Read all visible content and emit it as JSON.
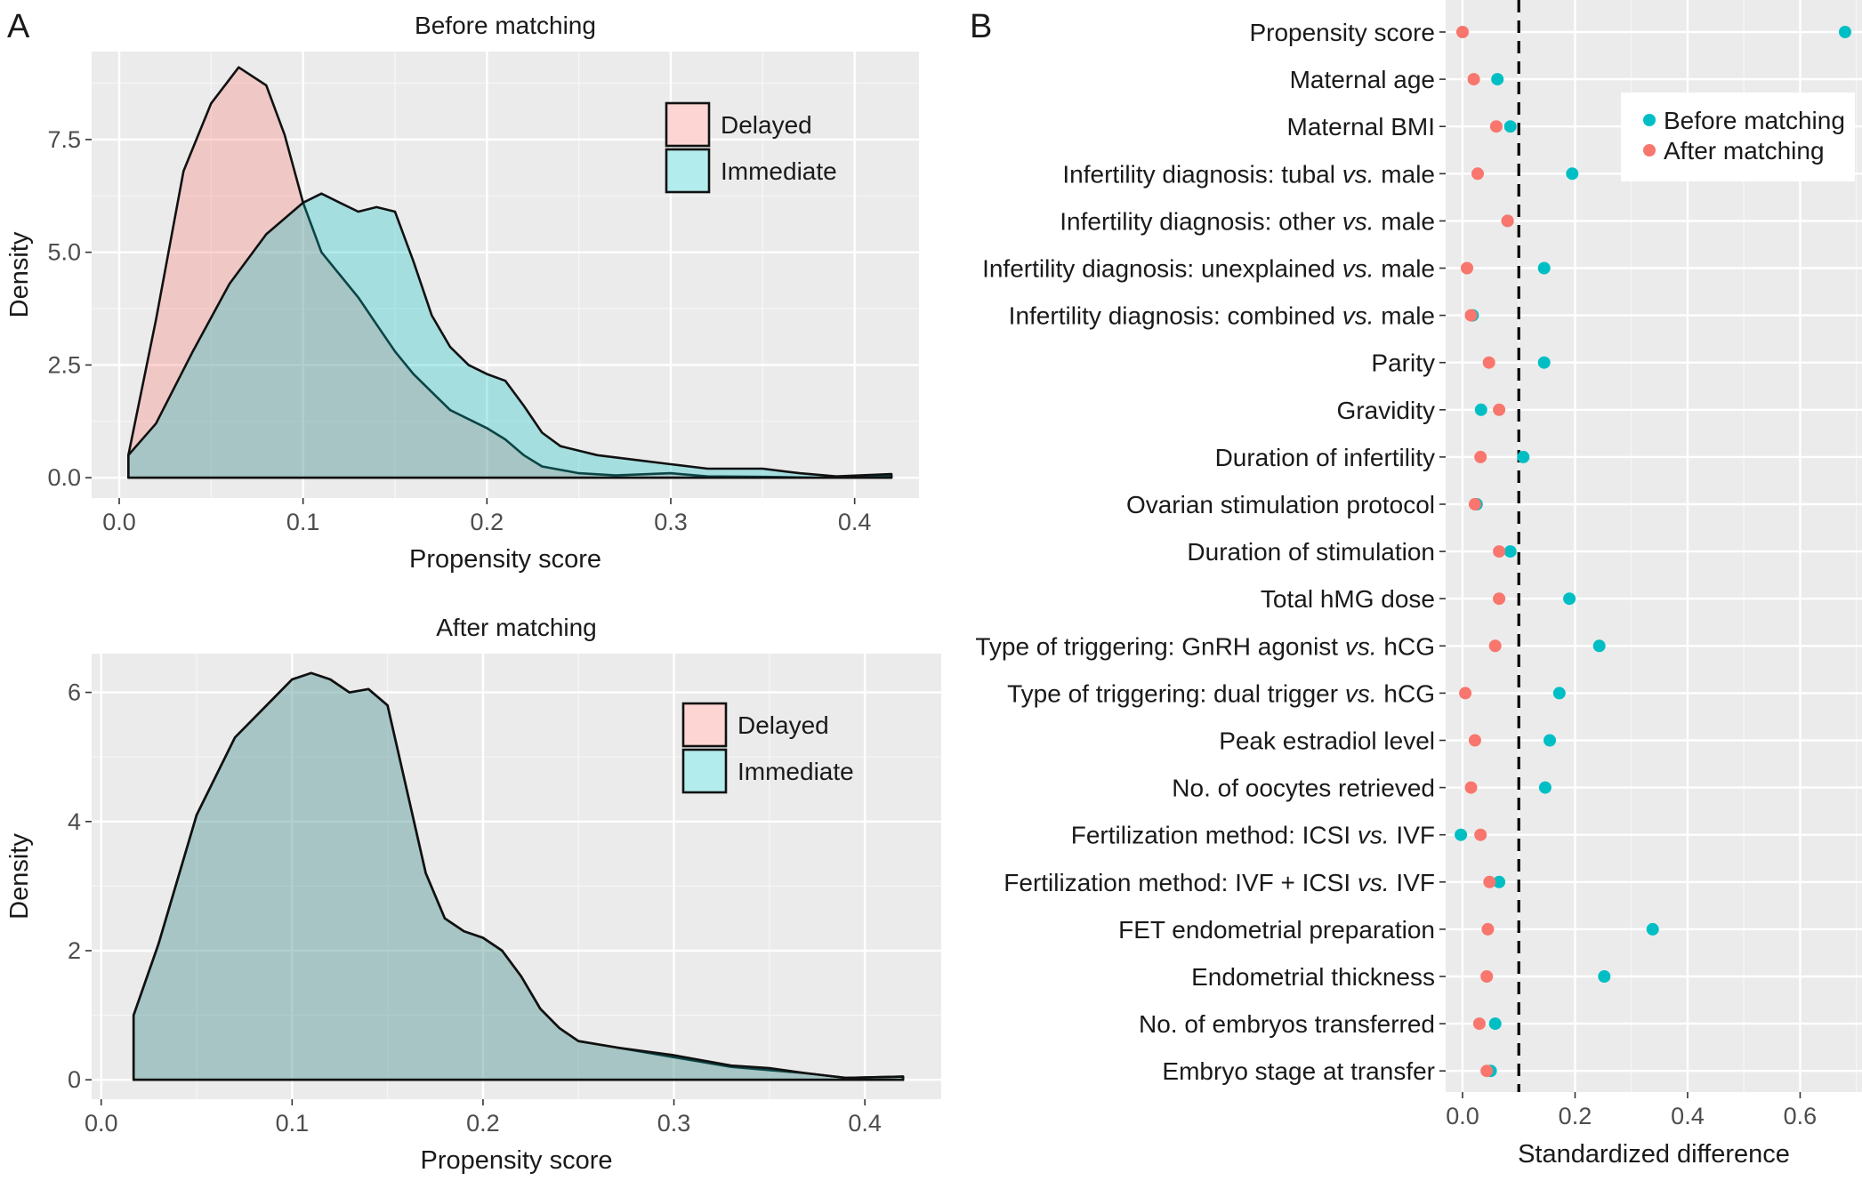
{
  "chart_data": [
    {
      "panel": "A",
      "type": "area",
      "title": "Before matching",
      "xlabel": "Propensity score",
      "ylabel": "Density",
      "xlim": [
        -0.015,
        0.435
      ],
      "ylim": [
        -0.45,
        9.45
      ],
      "xticks": [
        0.0,
        0.1,
        0.2,
        0.3,
        0.4
      ],
      "xtick_labels": [
        "0.0",
        "0.1",
        "0.2",
        "0.3",
        "0.4"
      ],
      "yticks": [
        0.0,
        2.5,
        5.0,
        7.5
      ],
      "ytick_labels": [
        "0.0",
        "2.5",
        "5.0",
        "7.5"
      ],
      "grid": true,
      "legend_position": "top-right",
      "series": [
        {
          "name": "Delayed",
          "color": "#F8766D",
          "points": [
            [
              0.005,
              0.5
            ],
            [
              0.02,
              3.5
            ],
            [
              0.035,
              6.8
            ],
            [
              0.05,
              8.3
            ],
            [
              0.065,
              9.1
            ],
            [
              0.08,
              8.7
            ],
            [
              0.09,
              7.6
            ],
            [
              0.1,
              6.1
            ],
            [
              0.11,
              5.0
            ],
            [
              0.12,
              4.5
            ],
            [
              0.13,
              4.0
            ],
            [
              0.14,
              3.4
            ],
            [
              0.15,
              2.8
            ],
            [
              0.16,
              2.3
            ],
            [
              0.17,
              1.9
            ],
            [
              0.18,
              1.5
            ],
            [
              0.19,
              1.3
            ],
            [
              0.2,
              1.1
            ],
            [
              0.21,
              0.85
            ],
            [
              0.22,
              0.5
            ],
            [
              0.23,
              0.25
            ],
            [
              0.25,
              0.1
            ],
            [
              0.27,
              0.05
            ],
            [
              0.3,
              0.1
            ],
            [
              0.32,
              0.03
            ],
            [
              0.35,
              0.02
            ],
            [
              0.38,
              0.0
            ],
            [
              0.4,
              0.0
            ],
            [
              0.42,
              0.05
            ]
          ]
        },
        {
          "name": "Immediate",
          "color": "#00BFC4",
          "points": [
            [
              0.005,
              0.5
            ],
            [
              0.02,
              1.2
            ],
            [
              0.04,
              2.8
            ],
            [
              0.06,
              4.3
            ],
            [
              0.08,
              5.4
            ],
            [
              0.1,
              6.1
            ],
            [
              0.11,
              6.3
            ],
            [
              0.12,
              6.1
            ],
            [
              0.13,
              5.9
            ],
            [
              0.14,
              6.0
            ],
            [
              0.15,
              5.9
            ],
            [
              0.16,
              4.8
            ],
            [
              0.17,
              3.6
            ],
            [
              0.18,
              2.9
            ],
            [
              0.19,
              2.5
            ],
            [
              0.2,
              2.3
            ],
            [
              0.21,
              2.15
            ],
            [
              0.22,
              1.6
            ],
            [
              0.23,
              1.0
            ],
            [
              0.24,
              0.7
            ],
            [
              0.26,
              0.5
            ],
            [
              0.28,
              0.4
            ],
            [
              0.3,
              0.3
            ],
            [
              0.32,
              0.2
            ],
            [
              0.35,
              0.2
            ],
            [
              0.37,
              0.1
            ],
            [
              0.39,
              0.03
            ],
            [
              0.42,
              0.08
            ]
          ]
        }
      ]
    },
    {
      "panel": "",
      "type": "area",
      "title": "After matching",
      "xlabel": "Propensity score",
      "ylabel": "Density",
      "xlim": [
        -0.005,
        0.44
      ],
      "ylim": [
        -0.3,
        6.6
      ],
      "xticks": [
        0.0,
        0.1,
        0.2,
        0.3,
        0.4
      ],
      "xtick_labels": [
        "0.0",
        "0.1",
        "0.2",
        "0.3",
        "0.4"
      ],
      "yticks": [
        0,
        2,
        4,
        6
      ],
      "ytick_labels": [
        "0",
        "2",
        "4",
        "6"
      ],
      "grid": true,
      "legend_position": "top-right",
      "series": [
        {
          "name": "Delayed",
          "color": "#F8766D",
          "points": [
            [
              0.017,
              1.0
            ],
            [
              0.03,
              2.1
            ],
            [
              0.05,
              4.1
            ],
            [
              0.07,
              5.3
            ],
            [
              0.09,
              5.9
            ],
            [
              0.1,
              6.2
            ],
            [
              0.11,
              6.3
            ],
            [
              0.12,
              6.2
            ],
            [
              0.13,
              6.0
            ],
            [
              0.14,
              6.05
            ],
            [
              0.15,
              5.8
            ],
            [
              0.16,
              4.5
            ],
            [
              0.17,
              3.2
            ],
            [
              0.18,
              2.5
            ],
            [
              0.19,
              2.3
            ],
            [
              0.2,
              2.2
            ],
            [
              0.21,
              2.0
            ],
            [
              0.22,
              1.6
            ],
            [
              0.23,
              1.1
            ],
            [
              0.24,
              0.8
            ],
            [
              0.25,
              0.6
            ],
            [
              0.27,
              0.5
            ],
            [
              0.3,
              0.35
            ],
            [
              0.33,
              0.2
            ],
            [
              0.35,
              0.15
            ],
            [
              0.37,
              0.1
            ],
            [
              0.39,
              0.03
            ],
            [
              0.42,
              0.05
            ]
          ]
        },
        {
          "name": "Immediate",
          "color": "#00BFC4",
          "points": [
            [
              0.017,
              1.0
            ],
            [
              0.03,
              2.1
            ],
            [
              0.05,
              4.1
            ],
            [
              0.07,
              5.3
            ],
            [
              0.09,
              5.9
            ],
            [
              0.1,
              6.2
            ],
            [
              0.11,
              6.3
            ],
            [
              0.12,
              6.2
            ],
            [
              0.13,
              6.0
            ],
            [
              0.14,
              6.05
            ],
            [
              0.15,
              5.8
            ],
            [
              0.16,
              4.5
            ],
            [
              0.17,
              3.2
            ],
            [
              0.18,
              2.5
            ],
            [
              0.19,
              2.3
            ],
            [
              0.2,
              2.2
            ],
            [
              0.21,
              2.0
            ],
            [
              0.22,
              1.6
            ],
            [
              0.23,
              1.1
            ],
            [
              0.24,
              0.8
            ],
            [
              0.25,
              0.6
            ],
            [
              0.27,
              0.5
            ],
            [
              0.3,
              0.38
            ],
            [
              0.33,
              0.22
            ],
            [
              0.35,
              0.18
            ],
            [
              0.37,
              0.1
            ],
            [
              0.39,
              0.03
            ],
            [
              0.42,
              0.05
            ]
          ]
        }
      ]
    },
    {
      "panel": "B",
      "type": "scatter",
      "title": "",
      "xlabel": "Standardized difference",
      "ylabel": "",
      "xlim": [
        -0.03,
        0.71
      ],
      "xticks": [
        0.0,
        0.2,
        0.4,
        0.6
      ],
      "xtick_labels": [
        "0.0",
        "0.2",
        "0.4",
        "0.6"
      ],
      "reference_line": 0.1,
      "grid": true,
      "legend_position": "top-right",
      "categories": [
        [
          "Propensity score"
        ],
        [
          "Maternal age"
        ],
        [
          "Maternal BMI"
        ],
        [
          "Infertility diagnosis: tubal ",
          "vs.",
          " male"
        ],
        [
          "Infertility diagnosis: other ",
          "vs.",
          " male"
        ],
        [
          "Infertility diagnosis: unexplained ",
          "vs.",
          " male"
        ],
        [
          "Infertility diagnosis: combined ",
          "vs.",
          " male"
        ],
        [
          "Parity"
        ],
        [
          "Gravidity"
        ],
        [
          "Duration of infertility"
        ],
        [
          "Ovarian stimulation protocol"
        ],
        [
          "Duration of stimulation"
        ],
        [
          "Total hMG dose"
        ],
        [
          "Type of triggering: GnRH agonist ",
          "vs.",
          " hCG"
        ],
        [
          "Type of triggering: dual trigger ",
          "vs.",
          " hCG"
        ],
        [
          "Peak estradiol level"
        ],
        [
          "No. of oocytes retrieved"
        ],
        [
          "Fertilization method: ICSI ",
          "vs.",
          " IVF"
        ],
        [
          "Fertilization method: IVF + ICSI ",
          "vs.",
          " IVF"
        ],
        [
          "FET endometrial preparation"
        ],
        [
          "Endometrial thickness"
        ],
        [
          "No. of embryos transferred"
        ],
        [
          "Embryo stage at transfer"
        ]
      ],
      "series": [
        {
          "name": "Before matching",
          "color": "#00BFC4",
          "values": [
            0.68,
            0.062,
            0.085,
            0.195,
            0.08,
            0.145,
            0.018,
            0.145,
            0.033,
            0.108,
            0.025,
            0.085,
            0.19,
            0.243,
            0.172,
            0.155,
            0.147,
            -0.003,
            0.065,
            0.338,
            0.252,
            0.058,
            0.05
          ]
        },
        {
          "name": "After matching",
          "color": "#F8766D",
          "values": [
            0.0,
            0.02,
            0.06,
            0.027,
            0.08,
            0.008,
            0.015,
            0.047,
            0.065,
            0.032,
            0.022,
            0.065,
            0.065,
            0.058,
            0.005,
            0.022,
            0.015,
            0.032,
            0.048,
            0.045,
            0.043,
            0.03,
            0.043
          ]
        }
      ]
    }
  ]
}
